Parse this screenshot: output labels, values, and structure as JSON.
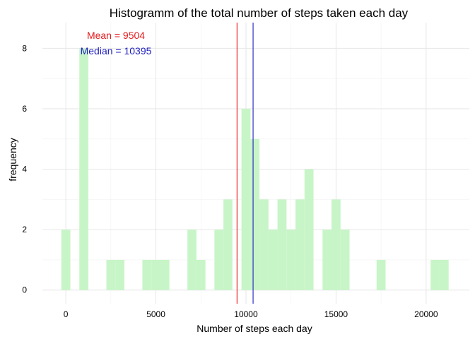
{
  "chart_data": {
    "type": "histogram",
    "title": "Histogramm of the total number of steps taken each day",
    "xlabel": "Number of steps each day",
    "ylabel": "frequency",
    "xlim": [
      -1300,
      22400
    ],
    "ylim": [
      -0.45,
      8.85
    ],
    "x_ticks": [
      0,
      5000,
      10000,
      15000,
      20000
    ],
    "y_ticks": [
      0,
      2,
      4,
      6,
      8
    ],
    "bin_width": 500,
    "bins": [
      {
        "x0": -250,
        "x1": 250,
        "count": 2
      },
      {
        "x0": 750,
        "x1": 1250,
        "count": 8
      },
      {
        "x0": 2250,
        "x1": 2750,
        "count": 1
      },
      {
        "x0": 2750,
        "x1": 3250,
        "count": 1
      },
      {
        "x0": 4250,
        "x1": 4750,
        "count": 1
      },
      {
        "x0": 4750,
        "x1": 5250,
        "count": 1
      },
      {
        "x0": 5250,
        "x1": 5750,
        "count": 1
      },
      {
        "x0": 6750,
        "x1": 7250,
        "count": 2
      },
      {
        "x0": 7250,
        "x1": 7750,
        "count": 1
      },
      {
        "x0": 8250,
        "x1": 8750,
        "count": 2
      },
      {
        "x0": 8750,
        "x1": 9250,
        "count": 3
      },
      {
        "x0": 9750,
        "x1": 10250,
        "count": 6
      },
      {
        "x0": 10250,
        "x1": 10750,
        "count": 5
      },
      {
        "x0": 10750,
        "x1": 11250,
        "count": 3
      },
      {
        "x0": 11250,
        "x1": 11750,
        "count": 2
      },
      {
        "x0": 11750,
        "x1": 12250,
        "count": 3
      },
      {
        "x0": 12250,
        "x1": 12750,
        "count": 2
      },
      {
        "x0": 12750,
        "x1": 13250,
        "count": 3
      },
      {
        "x0": 13250,
        "x1": 13750,
        "count": 4
      },
      {
        "x0": 14250,
        "x1": 14750,
        "count": 2
      },
      {
        "x0": 14750,
        "x1": 15250,
        "count": 3
      },
      {
        "x0": 15250,
        "x1": 15750,
        "count": 2
      },
      {
        "x0": 17250,
        "x1": 17750,
        "count": 1
      },
      {
        "x0": 20250,
        "x1": 20750,
        "count": 1
      },
      {
        "x0": 20750,
        "x1": 21250,
        "count": 1
      }
    ],
    "reference_lines": [
      {
        "label": "Mean = 9504",
        "value": 9504,
        "color": "#e41a1c"
      },
      {
        "label": "Median = 10395",
        "value": 10395,
        "color": "#1f1fbf"
      }
    ],
    "bar_color": "#c7f5c7",
    "grid": true,
    "legend": "none"
  }
}
